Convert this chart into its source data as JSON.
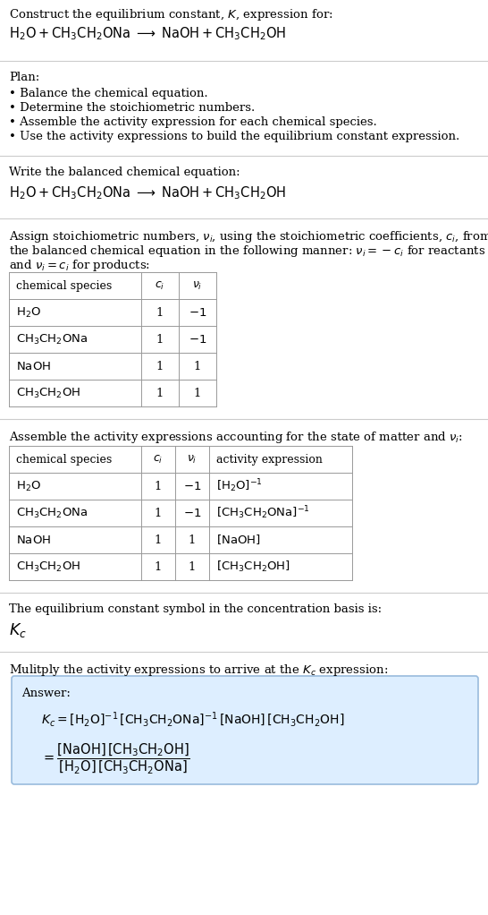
{
  "title_line1": "Construct the equilibrium constant, $K$, expression for:",
  "title_line2": "$\\mathrm{H_2O + CH_3CH_2ONa \\;\\longrightarrow\\; NaOH + CH_3CH_2OH}$",
  "plan_header": "Plan:",
  "plan_items": [
    "• Balance the chemical equation.",
    "• Determine the stoichiometric numbers.",
    "• Assemble the activity expression for each chemical species.",
    "• Use the activity expressions to build the equilibrium constant expression."
  ],
  "section2_header": "Write the balanced chemical equation:",
  "section2_eq": "$\\mathrm{H_2O + CH_3CH_2ONa \\;\\longrightarrow\\; NaOH + CH_3CH_2OH}$",
  "section3_text1": "Assign stoichiometric numbers, $\\nu_i$, using the stoichiometric coefficients, $c_i$, from",
  "section3_text2": "the balanced chemical equation in the following manner: $\\nu_i = -c_i$ for reactants",
  "section3_text3": "and $\\nu_i = c_i$ for products:",
  "table1_headers": [
    "chemical species",
    "$c_i$",
    "$\\nu_i$"
  ],
  "table1_rows": [
    [
      "$\\mathrm{H_2O}$",
      "1",
      "$-1$"
    ],
    [
      "$\\mathrm{CH_3CH_2ONa}$",
      "1",
      "$-1$"
    ],
    [
      "$\\mathrm{NaOH}$",
      "1",
      "1"
    ],
    [
      "$\\mathrm{CH_3CH_2OH}$",
      "1",
      "1"
    ]
  ],
  "section4_text": "Assemble the activity expressions accounting for the state of matter and $\\nu_i$:",
  "table2_headers": [
    "chemical species",
    "$c_i$",
    "$\\nu_i$",
    "activity expression"
  ],
  "table2_rows": [
    [
      "$\\mathrm{H_2O}$",
      "1",
      "$-1$",
      "$[\\mathrm{H_2O}]^{-1}$"
    ],
    [
      "$\\mathrm{CH_3CH_2ONa}$",
      "1",
      "$-1$",
      "$[\\mathrm{CH_3CH_2ONa}]^{-1}$"
    ],
    [
      "$\\mathrm{NaOH}$",
      "1",
      "1",
      "$[\\mathrm{NaOH}]$"
    ],
    [
      "$\\mathrm{CH_3CH_2OH}$",
      "1",
      "1",
      "$[\\mathrm{CH_3CH_2OH}]$"
    ]
  ],
  "section5_text1": "The equilibrium constant symbol in the concentration basis is:",
  "section5_kc": "$K_c$",
  "section6_text": "Mulitply the activity expressions to arrive at the $K_c$ expression:",
  "answer_label": "Answer:",
  "answer_line1": "$K_c = [\\mathrm{H_2O}]^{-1}\\,[\\mathrm{CH_3CH_2ONa}]^{-1}\\,[\\mathrm{NaOH}]\\,[\\mathrm{CH_3CH_2OH}]$",
  "answer_line2": "$= \\dfrac{[\\mathrm{NaOH}]\\,[\\mathrm{CH_3CH_2OH}]}{[\\mathrm{H_2O}]\\,[\\mathrm{CH_3CH_2ONa}]}$",
  "bg_color": "#ffffff",
  "answer_box_color": "#ddeeff",
  "text_color": "#000000",
  "separator_color": "#cccccc",
  "table_line_color": "#999999"
}
